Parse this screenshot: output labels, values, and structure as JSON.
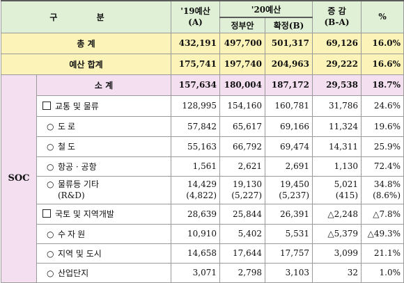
{
  "header": {
    "category": "구  분",
    "y19_line1": "'19예산",
    "y19_line2": "(A)",
    "y20": "'20예산",
    "y20_gov": "정부안",
    "y20_final": "확정(B)",
    "change_line1": "증 감",
    "change_line2": "(B-A)",
    "pct": "%"
  },
  "total": {
    "label": "총  계",
    "a": "432,191",
    "gov": "497,700",
    "b": "501,317",
    "diff": "69,126",
    "pct": "16.0%"
  },
  "budget_sum": {
    "label": "예산 합계",
    "a": "175,741",
    "gov": "197,740",
    "b": "204,963",
    "diff": "29,222",
    "pct": "16.6%"
  },
  "soc": {
    "label": "SOC",
    "subtotal": {
      "label": "소  계",
      "a": "157,634",
      "gov": "180,004",
      "b": "187,172",
      "diff": "29,538",
      "pct": "18.7%"
    },
    "transport": {
      "label": "교통 및 물류",
      "a": "128,995",
      "gov": "154,160",
      "b": "160,781",
      "diff": "31,786",
      "pct": "24.6%"
    },
    "road": {
      "label": "도로",
      "a": "57,842",
      "gov": "65,617",
      "b": "69,166",
      "diff": "11,324",
      "pct": "19.6%"
    },
    "rail": {
      "label": "철도",
      "a": "55,163",
      "gov": "66,792",
      "b": "69,474",
      "diff": "14,311",
      "pct": "25.9%"
    },
    "aviation": {
      "label": "항공 · 공항",
      "a": "1,561",
      "gov": "2,621",
      "b": "2,691",
      "diff": "1,130",
      "pct": "72.4%"
    },
    "logistics": {
      "label": "물류등 기타",
      "label2": "(R&D)",
      "a": "14,429",
      "a2": "(4,822)",
      "gov": "19,130",
      "gov2": "(5,227)",
      "b": "19,450",
      "b2": "(5,237)",
      "diff": "5,021",
      "diff2": "(415)",
      "pct": "34.8%",
      "pct2": "(8.6%)"
    },
    "land": {
      "label": "국토 및 지역개발",
      "a": "28,639",
      "gov": "25,844",
      "b": "26,391",
      "diff": "△2,248",
      "pct": "△7.8%"
    },
    "water": {
      "label": "수자원",
      "a": "10,910",
      "gov": "5,402",
      "b": "5,531",
      "diff": "△5,379",
      "pct": "△49.3%"
    },
    "region": {
      "label": "지역 및 도시",
      "a": "14,658",
      "gov": "17,644",
      "b": "17,757",
      "diff": "3,099",
      "pct": "21.1%"
    },
    "industrial": {
      "label": "산업단지",
      "a": "3,071",
      "gov": "2,798",
      "b": "3,103",
      "diff": "32",
      "pct": "1.0%"
    }
  }
}
